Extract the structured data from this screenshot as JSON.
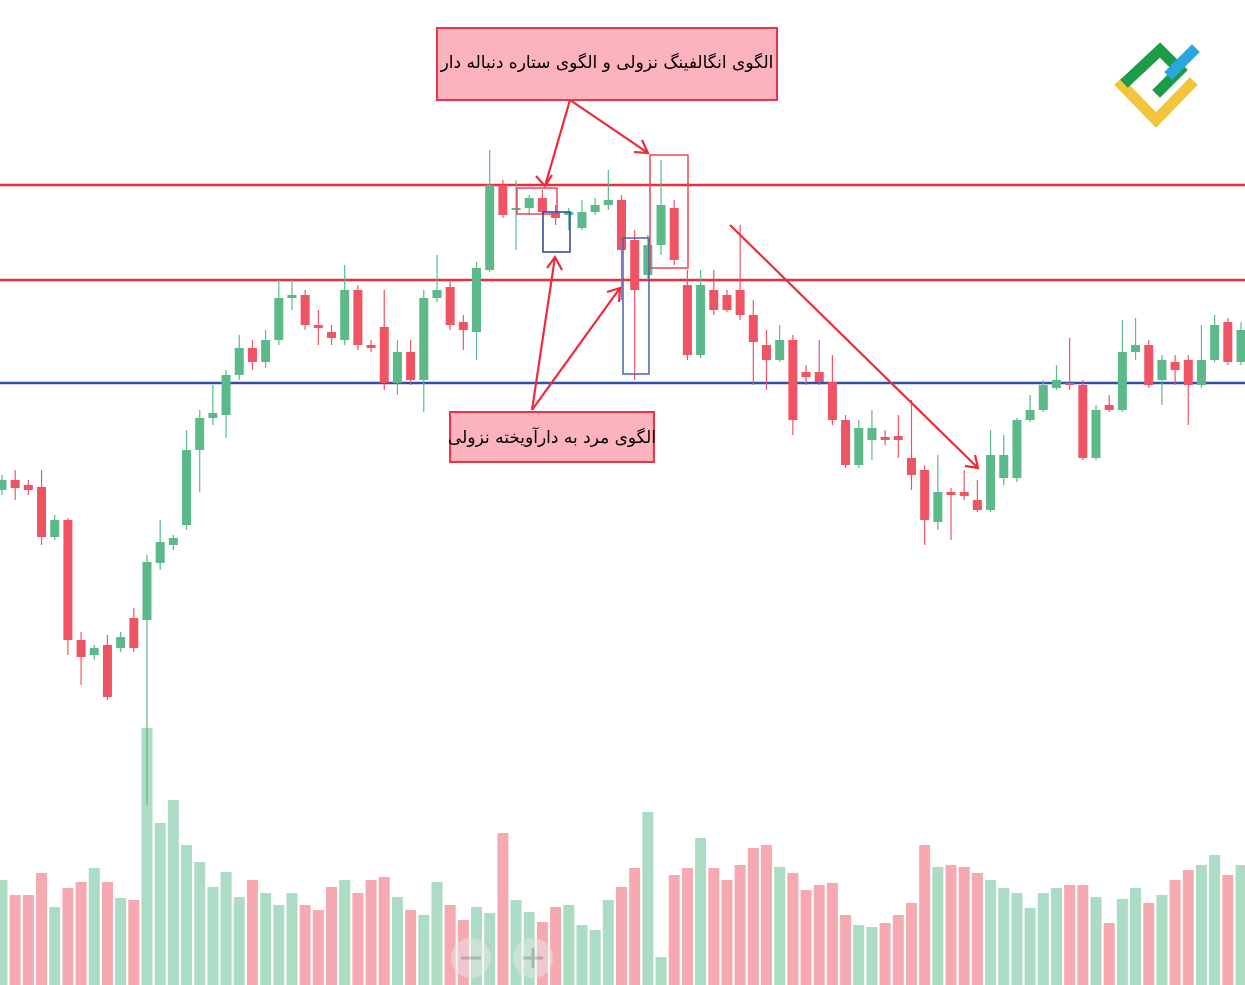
{
  "chart_data": {
    "type": "candlestick",
    "annotations": [
      "الگوی انگالفینگ نزولی و الگوی ستاره دنباله دار",
      "الگوی مرد به دارآویخته نزولی"
    ],
    "up_color": "#5bb98a",
    "down_color": "#ef5464",
    "ylim": [
      15,
      1000
    ],
    "levels": [
      {
        "value": 815,
        "color": "#ee2a3c"
      },
      {
        "value": 720,
        "color": "#ee2a3c"
      },
      {
        "value": 617,
        "color": "#2f4fae"
      }
    ],
    "ohlc": [
      [
        510,
        525,
        505,
        520
      ],
      [
        520,
        530,
        500,
        512
      ],
      [
        515,
        520,
        505,
        510
      ],
      [
        513,
        530,
        455,
        463
      ],
      [
        463,
        485,
        460,
        480
      ],
      [
        480,
        482,
        345,
        360
      ],
      [
        360,
        368,
        315,
        343
      ],
      [
        345,
        355,
        340,
        352
      ],
      [
        355,
        365,
        300,
        303
      ],
      [
        352,
        368,
        348,
        363
      ],
      [
        382,
        392,
        348,
        352
      ],
      [
        380,
        445,
        195,
        438
      ],
      [
        437,
        480,
        430,
        458
      ],
      [
        455,
        465,
        450,
        462
      ],
      [
        475,
        570,
        470,
        550
      ],
      [
        550,
        590,
        508,
        582
      ],
      [
        582,
        615,
        575,
        587
      ],
      [
        585,
        630,
        562,
        625
      ],
      [
        625,
        665,
        620,
        652
      ],
      [
        652,
        660,
        630,
        638
      ],
      [
        638,
        670,
        632,
        660
      ],
      [
        660,
        720,
        655,
        702
      ],
      [
        702,
        720,
        690,
        705
      ],
      [
        705,
        710,
        670,
        675
      ],
      [
        675,
        690,
        655,
        672
      ],
      [
        668,
        675,
        655,
        662
      ],
      [
        660,
        735,
        655,
        710
      ],
      [
        710,
        715,
        650,
        655
      ],
      [
        655,
        660,
        648,
        652
      ],
      [
        673,
        710,
        610,
        617
      ],
      [
        617,
        660,
        605,
        648
      ],
      [
        648,
        660,
        615,
        620
      ],
      [
        620,
        710,
        588,
        702
      ],
      [
        702,
        745,
        698,
        710
      ],
      [
        713,
        718,
        670,
        675
      ],
      [
        678,
        685,
        650,
        670
      ],
      [
        668,
        738,
        640,
        732
      ],
      [
        730,
        850,
        728,
        815
      ],
      [
        815,
        820,
        782,
        785
      ],
      [
        790,
        820,
        750,
        792
      ],
      [
        792,
        805,
        785,
        802
      ],
      [
        802,
        810,
        785,
        788
      ],
      [
        787,
        795,
        775,
        782
      ],
      [
        785,
        792,
        770,
        788
      ],
      [
        772,
        800,
        770,
        788
      ],
      [
        788,
        802,
        785,
        795
      ],
      [
        795,
        830,
        790,
        800
      ],
      [
        800,
        805,
        700,
        750
      ],
      [
        760,
        770,
        620,
        710
      ],
      [
        725,
        765,
        720,
        755
      ],
      [
        755,
        840,
        745,
        795
      ],
      [
        792,
        800,
        735,
        740
      ],
      [
        715,
        730,
        640,
        645
      ],
      [
        645,
        730,
        642,
        715
      ],
      [
        710,
        730,
        685,
        690
      ],
      [
        705,
        710,
        688,
        690
      ],
      [
        710,
        775,
        680,
        685
      ],
      [
        685,
        700,
        615,
        658
      ],
      [
        655,
        670,
        610,
        640
      ],
      [
        640,
        675,
        638,
        660
      ],
      [
        660,
        665,
        565,
        580
      ],
      [
        628,
        635,
        615,
        623
      ],
      [
        628,
        660,
        615,
        618
      ],
      [
        618,
        645,
        575,
        580
      ],
      [
        580,
        585,
        532,
        535
      ],
      [
        535,
        580,
        532,
        572
      ],
      [
        560,
        590,
        540,
        572
      ],
      [
        563,
        570,
        555,
        560
      ],
      [
        564,
        585,
        542,
        560
      ],
      [
        542,
        600,
        510,
        525
      ],
      [
        530,
        535,
        455,
        480
      ],
      [
        478,
        545,
        470,
        508
      ],
      [
        508,
        512,
        460,
        505
      ],
      [
        508,
        530,
        500,
        504
      ],
      [
        500,
        520,
        488,
        490
      ],
      [
        490,
        570,
        488,
        545
      ],
      [
        522,
        565,
        515,
        545
      ],
      [
        522,
        582,
        518,
        580
      ],
      [
        580,
        605,
        578,
        590
      ],
      [
        590,
        620,
        588,
        615
      ],
      [
        612,
        635,
        610,
        620
      ],
      [
        617,
        662,
        610,
        615
      ],
      [
        615,
        620,
        540,
        542
      ],
      [
        542,
        595,
        540,
        590
      ],
      [
        595,
        605,
        588,
        590
      ],
      [
        590,
        680,
        588,
        648
      ],
      [
        648,
        682,
        640,
        655
      ],
      [
        655,
        660,
        612,
        615
      ],
      [
        620,
        645,
        595,
        640
      ],
      [
        638,
        645,
        615,
        630
      ],
      [
        640,
        645,
        575,
        615
      ],
      [
        615,
        675,
        612,
        640
      ],
      [
        640,
        685,
        638,
        675
      ],
      [
        678,
        682,
        635,
        638
      ],
      [
        638,
        678,
        635,
        670
      ]
    ],
    "volume_lim": [
      0,
      300
    ],
    "volume": [
      105,
      90,
      90,
      112,
      78,
      97,
      103,
      117,
      103,
      87,
      85,
      257,
      162,
      185,
      140,
      123,
      98,
      113,
      88,
      105,
      92,
      80,
      92,
      80,
      75,
      98,
      105,
      92,
      105,
      108,
      88,
      75,
      70,
      103,
      80,
      65,
      78,
      72,
      152,
      85,
      73,
      63,
      78,
      80,
      60,
      55,
      85,
      98,
      117,
      173,
      28,
      110,
      117,
      147,
      117,
      105,
      120,
      137,
      140,
      118,
      112,
      95,
      100,
      102,
      70,
      60,
      58,
      62,
      70,
      82,
      140,
      118,
      120,
      118,
      112,
      105,
      97,
      92,
      77,
      92,
      97,
      100,
      100,
      88,
      62,
      86,
      97,
      82,
      90,
      105,
      115,
      120,
      130,
      110,
      120
    ]
  }
}
